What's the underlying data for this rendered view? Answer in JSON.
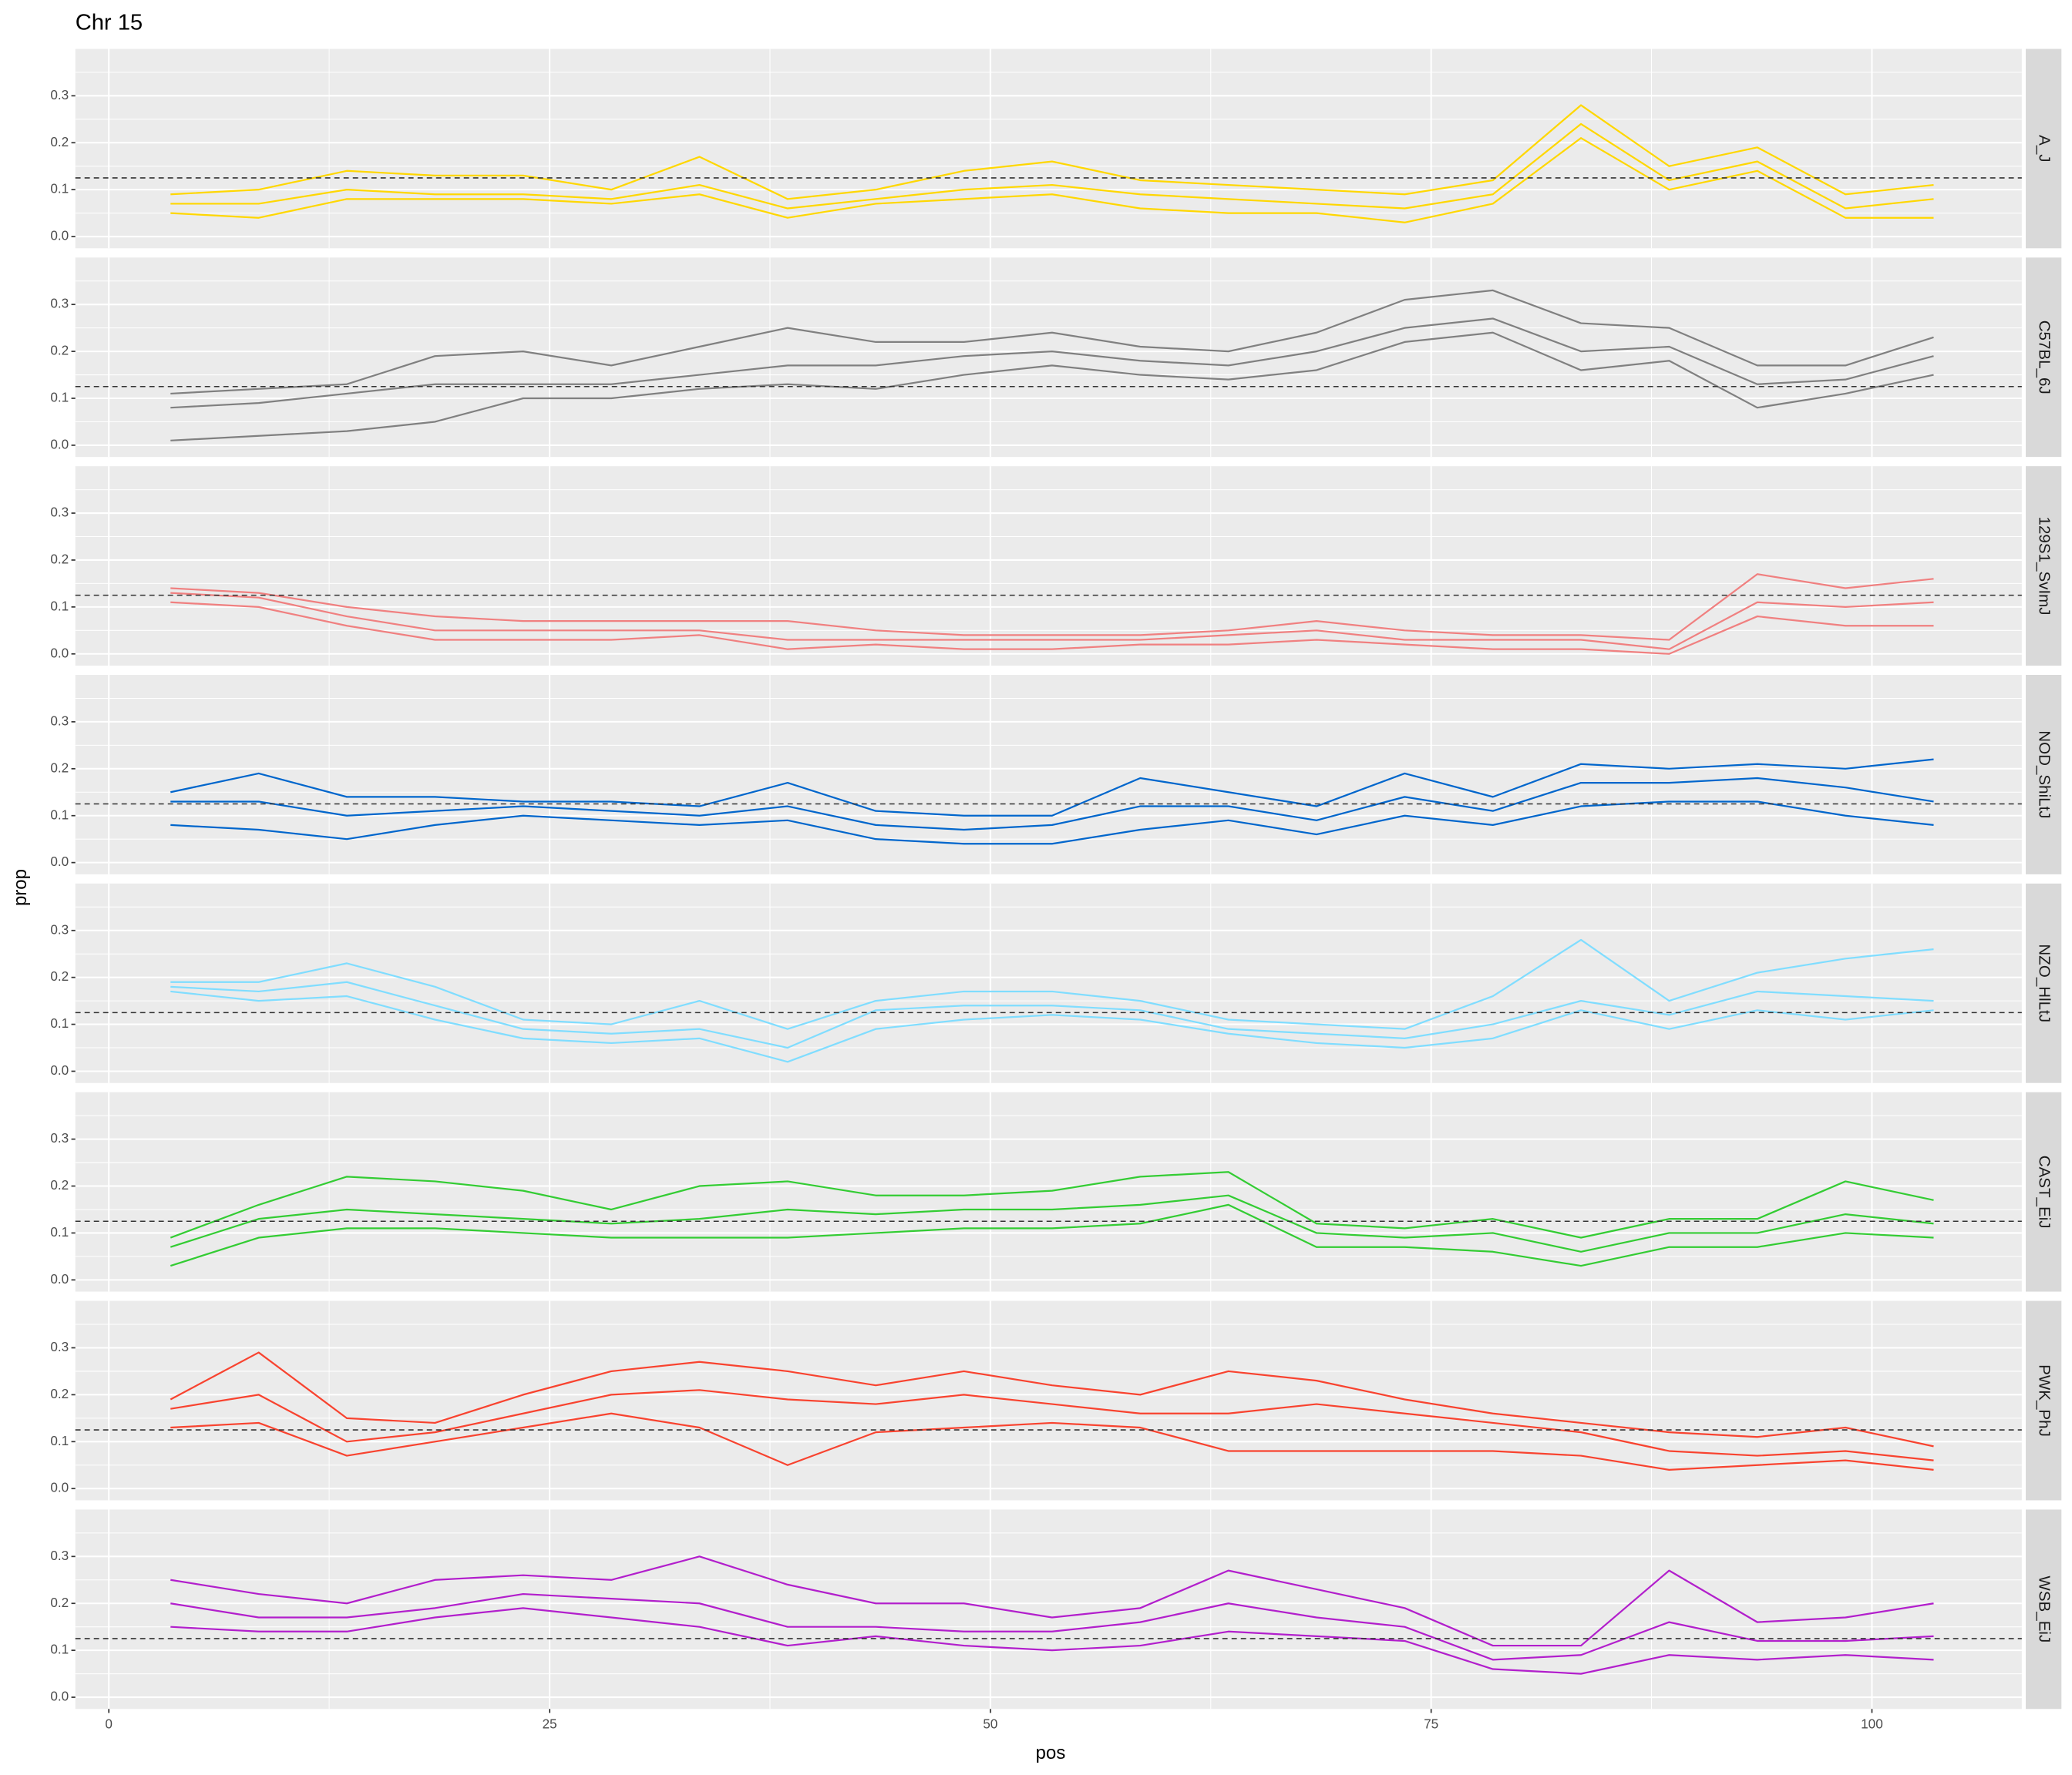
{
  "chart_data": {
    "type": "line",
    "title": "Chr 15",
    "x_label": "pos",
    "y_label": "prop",
    "xlim": [
      -1.9,
      108.5
    ],
    "xticks": [
      0,
      25,
      50,
      75,
      100
    ],
    "x_minor_ticks": [
      12.5,
      37.5,
      62.5,
      87.5
    ],
    "ylim": [
      -0.025,
      0.4
    ],
    "yticks": [
      {
        "value": 0,
        "label": "0.0"
      },
      0.1,
      0.2,
      0.3
    ],
    "y_minor_ticks": [
      0.05,
      0.15,
      0.25,
      0.35
    ],
    "grid": true,
    "reference_line": 0.125,
    "x": [
      3.5,
      8.5,
      13.5,
      18.5,
      23.5,
      28.5,
      33.5,
      38.5,
      43.5,
      48.5,
      53.5,
      58.5,
      63.5,
      68.5,
      73.5,
      78.5,
      83.5,
      88.5,
      93.5,
      98.5,
      103.5
    ],
    "panels": [
      {
        "label": "A_J",
        "color": "#FFD700",
        "series": [
          {
            "values": [
              0.05,
              0.04,
              0.08,
              0.08,
              0.08,
              0.07,
              0.09,
              0.04,
              0.07,
              0.08,
              0.09,
              0.06,
              0.05,
              0.05,
              0.03,
              0.07,
              0.21,
              0.1,
              0.14,
              0.04,
              0.04
            ]
          },
          {
            "values": [
              0.07,
              0.07,
              0.1,
              0.09,
              0.09,
              0.08,
              0.11,
              0.06,
              0.08,
              0.1,
              0.11,
              0.09,
              0.08,
              0.07,
              0.06,
              0.09,
              0.24,
              0.12,
              0.16,
              0.06,
              0.08
            ]
          },
          {
            "values": [
              0.09,
              0.1,
              0.14,
              0.13,
              0.13,
              0.1,
              0.17,
              0.08,
              0.1,
              0.14,
              0.16,
              0.12,
              0.11,
              0.1,
              0.09,
              0.12,
              0.28,
              0.15,
              0.19,
              0.09,
              0.11
            ]
          }
        ]
      },
      {
        "label": "C57BL_6J",
        "color": "#808080",
        "series": [
          {
            "values": [
              0.01,
              0.02,
              0.03,
              0.05,
              0.1,
              0.1,
              0.12,
              0.13,
              0.12,
              0.15,
              0.17,
              0.15,
              0.14,
              0.16,
              0.22,
              0.24,
              0.16,
              0.18,
              0.08,
              0.11,
              0.15
            ]
          },
          {
            "values": [
              0.08,
              0.09,
              0.11,
              0.13,
              0.13,
              0.13,
              0.15,
              0.17,
              0.17,
              0.19,
              0.2,
              0.18,
              0.17,
              0.2,
              0.25,
              0.27,
              0.2,
              0.21,
              0.13,
              0.14,
              0.19
            ]
          },
          {
            "values": [
              0.11,
              0.12,
              0.13,
              0.19,
              0.2,
              0.17,
              0.21,
              0.25,
              0.22,
              0.22,
              0.24,
              0.21,
              0.2,
              0.24,
              0.31,
              0.33,
              0.26,
              0.25,
              0.17,
              0.17,
              0.23
            ]
          }
        ]
      },
      {
        "label": "129S1_SvImJ",
        "color": "#F08080",
        "series": [
          {
            "values": [
              0.11,
              0.1,
              0.06,
              0.03,
              0.03,
              0.03,
              0.04,
              0.01,
              0.02,
              0.01,
              0.01,
              0.02,
              0.02,
              0.03,
              0.02,
              0.01,
              0.01,
              0.0,
              0.08,
              0.06,
              0.06
            ]
          },
          {
            "values": [
              0.13,
              0.12,
              0.08,
              0.05,
              0.05,
              0.05,
              0.05,
              0.03,
              0.03,
              0.03,
              0.03,
              0.03,
              0.04,
              0.05,
              0.03,
              0.03,
              0.03,
              0.01,
              0.11,
              0.1,
              0.11
            ]
          },
          {
            "values": [
              0.14,
              0.13,
              0.1,
              0.08,
              0.07,
              0.07,
              0.07,
              0.07,
              0.05,
              0.04,
              0.04,
              0.04,
              0.05,
              0.07,
              0.05,
              0.04,
              0.04,
              0.03,
              0.17,
              0.14,
              0.16
            ]
          }
        ]
      },
      {
        "label": "NOD_ShiLtJ",
        "color": "#0066CC",
        "series": [
          {
            "values": [
              0.08,
              0.07,
              0.05,
              0.08,
              0.1,
              0.09,
              0.08,
              0.09,
              0.05,
              0.04,
              0.04,
              0.07,
              0.09,
              0.06,
              0.1,
              0.08,
              0.12,
              0.13,
              0.13,
              0.1,
              0.08
            ]
          },
          {
            "values": [
              0.13,
              0.13,
              0.1,
              0.11,
              0.12,
              0.11,
              0.1,
              0.12,
              0.08,
              0.07,
              0.08,
              0.12,
              0.12,
              0.09,
              0.14,
              0.11,
              0.17,
              0.17,
              0.18,
              0.16,
              0.13
            ]
          },
          {
            "values": [
              0.15,
              0.19,
              0.14,
              0.14,
              0.13,
              0.13,
              0.12,
              0.17,
              0.11,
              0.1,
              0.1,
              0.18,
              0.15,
              0.12,
              0.19,
              0.14,
              0.21,
              0.2,
              0.21,
              0.2,
              0.22
            ]
          }
        ]
      },
      {
        "label": "NZO_HlLtJ",
        "color": "#80DDFF",
        "series": [
          {
            "values": [
              0.17,
              0.15,
              0.16,
              0.11,
              0.07,
              0.06,
              0.07,
              0.02,
              0.09,
              0.11,
              0.12,
              0.11,
              0.08,
              0.06,
              0.05,
              0.07,
              0.13,
              0.09,
              0.13,
              0.11,
              0.13
            ]
          },
          {
            "values": [
              0.18,
              0.17,
              0.19,
              0.14,
              0.09,
              0.08,
              0.09,
              0.05,
              0.13,
              0.14,
              0.14,
              0.13,
              0.09,
              0.08,
              0.07,
              0.1,
              0.15,
              0.12,
              0.17,
              0.16,
              0.15
            ]
          },
          {
            "values": [
              0.19,
              0.19,
              0.23,
              0.18,
              0.11,
              0.1,
              0.15,
              0.09,
              0.15,
              0.17,
              0.17,
              0.15,
              0.11,
              0.1,
              0.09,
              0.16,
              0.28,
              0.15,
              0.21,
              0.24,
              0.26
            ]
          }
        ]
      },
      {
        "label": "CAST_EiJ",
        "color": "#33CC33",
        "series": [
          {
            "values": [
              0.03,
              0.09,
              0.11,
              0.11,
              0.1,
              0.09,
              0.09,
              0.09,
              0.1,
              0.11,
              0.11,
              0.12,
              0.16,
              0.07,
              0.07,
              0.06,
              0.03,
              0.07,
              0.07,
              0.1,
              0.09
            ]
          },
          {
            "values": [
              0.07,
              0.13,
              0.15,
              0.14,
              0.13,
              0.12,
              0.13,
              0.15,
              0.14,
              0.15,
              0.15,
              0.16,
              0.18,
              0.1,
              0.09,
              0.1,
              0.06,
              0.1,
              0.1,
              0.14,
              0.12
            ]
          },
          {
            "values": [
              0.09,
              0.16,
              0.22,
              0.21,
              0.19,
              0.15,
              0.2,
              0.21,
              0.18,
              0.18,
              0.19,
              0.22,
              0.23,
              0.12,
              0.11,
              0.13,
              0.09,
              0.13,
              0.13,
              0.21,
              0.17
            ]
          }
        ]
      },
      {
        "label": "PWK_PhJ",
        "color": "#F8432F",
        "series": [
          {
            "values": [
              0.13,
              0.14,
              0.07,
              0.1,
              0.13,
              0.16,
              0.13,
              0.05,
              0.12,
              0.13,
              0.14,
              0.13,
              0.08,
              0.08,
              0.08,
              0.08,
              0.07,
              0.04,
              0.05,
              0.06,
              0.04
            ]
          },
          {
            "values": [
              0.17,
              0.2,
              0.1,
              0.12,
              0.16,
              0.2,
              0.21,
              0.19,
              0.18,
              0.2,
              0.18,
              0.16,
              0.16,
              0.18,
              0.16,
              0.14,
              0.12,
              0.08,
              0.07,
              0.08,
              0.06
            ]
          },
          {
            "values": [
              0.19,
              0.29,
              0.15,
              0.14,
              0.2,
              0.25,
              0.27,
              0.25,
              0.22,
              0.25,
              0.22,
              0.2,
              0.25,
              0.23,
              0.19,
              0.16,
              0.14,
              0.12,
              0.11,
              0.13,
              0.09
            ]
          }
        ]
      },
      {
        "label": "WSB_EiJ",
        "color": "#B21FCC",
        "series": [
          {
            "values": [
              0.15,
              0.14,
              0.14,
              0.17,
              0.19,
              0.17,
              0.15,
              0.11,
              0.13,
              0.11,
              0.1,
              0.11,
              0.14,
              0.13,
              0.12,
              0.06,
              0.05,
              0.09,
              0.08,
              0.09,
              0.08
            ]
          },
          {
            "values": [
              0.2,
              0.17,
              0.17,
              0.19,
              0.22,
              0.21,
              0.2,
              0.15,
              0.15,
              0.14,
              0.14,
              0.16,
              0.2,
              0.17,
              0.15,
              0.08,
              0.09,
              0.16,
              0.12,
              0.12,
              0.13
            ]
          },
          {
            "values": [
              0.25,
              0.22,
              0.2,
              0.25,
              0.26,
              0.25,
              0.3,
              0.24,
              0.2,
              0.2,
              0.17,
              0.19,
              0.27,
              0.23,
              0.19,
              0.11,
              0.11,
              0.27,
              0.16,
              0.17,
              0.2
            ]
          }
        ]
      }
    ]
  }
}
